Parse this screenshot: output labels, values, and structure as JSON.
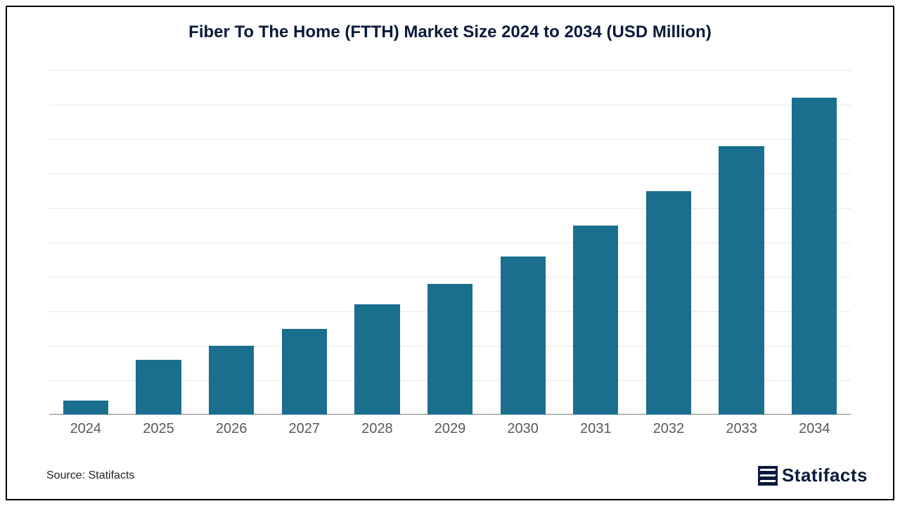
{
  "chart": {
    "type": "bar",
    "title": "Fiber To The Home (FTTH) Market Size 2024 to 2034 (USD Million)",
    "title_color": "#0a1a3a",
    "title_fontsize": 24,
    "title_fontweight": 700,
    "background_color": "#ffffff",
    "frame_border_color": "#000000",
    "categories": [
      "2024",
      "2025",
      "2026",
      "2027",
      "2028",
      "2029",
      "2030",
      "2031",
      "2032",
      "2033",
      "2034"
    ],
    "values": [
      4,
      16,
      20,
      25,
      32,
      38,
      46,
      55,
      65,
      78,
      92
    ],
    "ylim": [
      0,
      100
    ],
    "gridlines_y": [
      10,
      20,
      30,
      40,
      50,
      60,
      70,
      80,
      90,
      100
    ],
    "grid_color": "#e8e8e8",
    "axis_line_color": "#808080",
    "bar_color": "#1a6e8e",
    "bar_width_pct": 62,
    "xlabel_color": "#595959",
    "xlabel_fontsize": 20
  },
  "footer": {
    "source_label": "Source: Statifacts",
    "source_color": "#222222",
    "source_fontsize": 16,
    "logo_text": "Statifacts",
    "logo_text_color": "#0a1a3a",
    "logo_text_fontsize": 26,
    "logo_mark_bg": "#0a1a3a"
  }
}
